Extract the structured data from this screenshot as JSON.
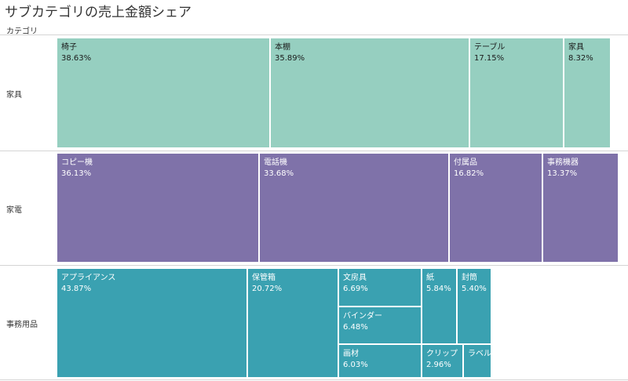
{
  "title": "サブカテゴリの売上金額シェア",
  "header": "カテゴリ",
  "colors": {
    "furniture": "#96cfc0",
    "appliance": "#7f72a9",
    "office": "#3aa1b1",
    "divider": "#d4d4d4"
  },
  "chart_data": {
    "type": "treemap",
    "title": "サブカテゴリの売上金額シェア",
    "row_header": "カテゴリ",
    "categories": [
      {
        "name": "家具",
        "items": [
          {
            "name": "椅子",
            "share": "38.63%"
          },
          {
            "name": "本棚",
            "share": "35.89%"
          },
          {
            "name": "テーブル",
            "share": "17.15%"
          },
          {
            "name": "家具",
            "share": "8.32%"
          }
        ]
      },
      {
        "name": "家電",
        "items": [
          {
            "name": "コピー機",
            "share": "36.13%"
          },
          {
            "name": "電話機",
            "share": "33.68%"
          },
          {
            "name": "付属品",
            "share": "16.82%"
          },
          {
            "name": "事務機器",
            "share": "13.37%"
          }
        ]
      },
      {
        "name": "事務用品",
        "items": [
          {
            "name": "アプライアンス",
            "share": "43.87%"
          },
          {
            "name": "保管箱",
            "share": "20.72%"
          },
          {
            "name": "文房具",
            "share": "6.69%"
          },
          {
            "name": "バインダー",
            "share": "6.48%"
          },
          {
            "name": "画材",
            "share": "6.03%"
          },
          {
            "name": "紙",
            "share": "5.84%"
          },
          {
            "name": "封筒",
            "share": "5.40%"
          },
          {
            "name": "クリップ",
            "share": "2.96%"
          },
          {
            "name": "ラベル",
            "share": ""
          }
        ]
      }
    ]
  }
}
